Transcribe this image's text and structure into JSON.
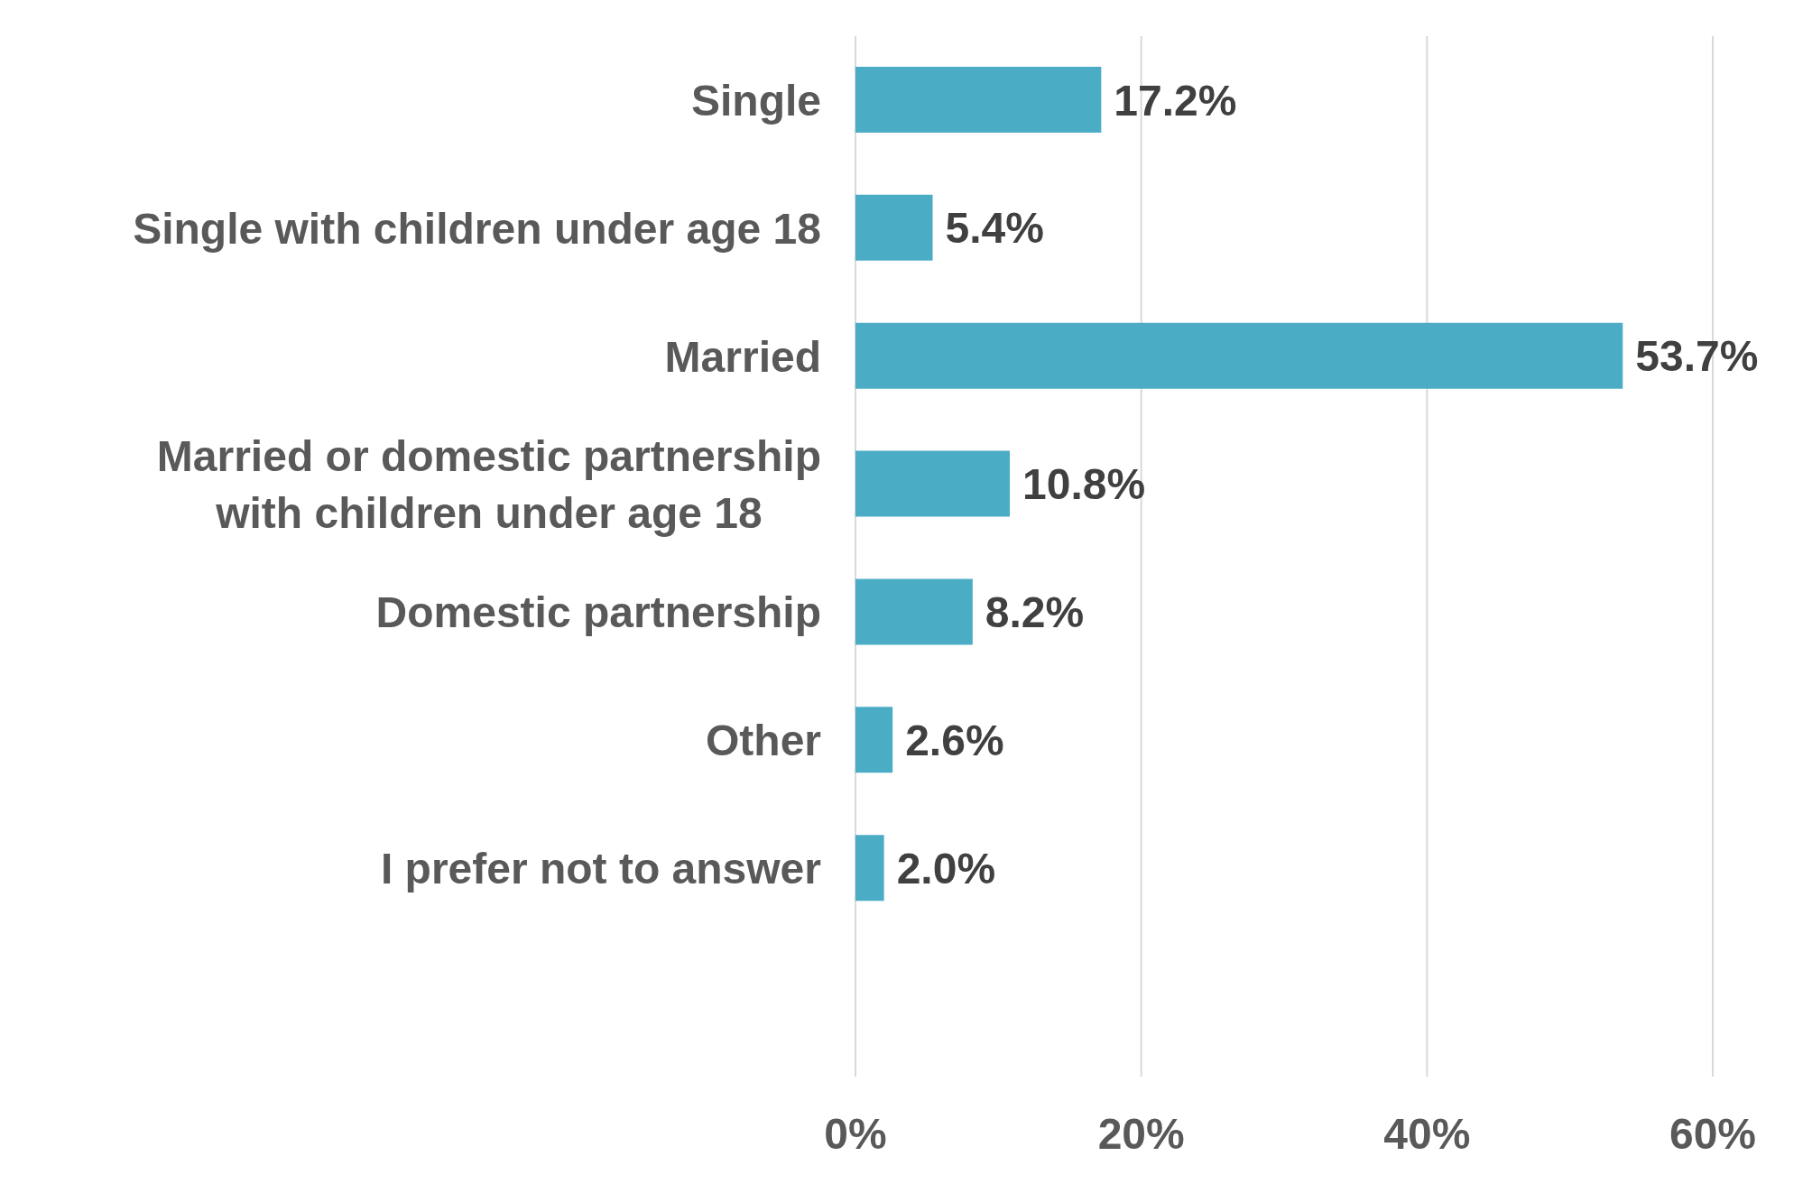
{
  "chart_data": {
    "type": "bar",
    "orientation": "horizontal",
    "categories": [
      "Single",
      "Single with children under age 18",
      "Married",
      "Married or domestic partnership with children under age 18",
      "Domestic partnership",
      "Other",
      "I prefer not to answer"
    ],
    "values": [
      17.2,
      5.4,
      53.7,
      10.8,
      8.2,
      2.6,
      2.0
    ],
    "value_labels": [
      "17.2%",
      "5.4%",
      "53.7%",
      "10.8%",
      "8.2%",
      "2.6%",
      "2.0%"
    ],
    "color": "#4bacc6",
    "xlim": [
      0,
      60
    ],
    "xticks": [
      {
        "value": 0,
        "label": "0%"
      },
      {
        "value": 20,
        "label": "20%"
      },
      {
        "value": 40,
        "label": "40%"
      },
      {
        "value": 60,
        "label": "60%"
      }
    ],
    "grid": "x"
  }
}
